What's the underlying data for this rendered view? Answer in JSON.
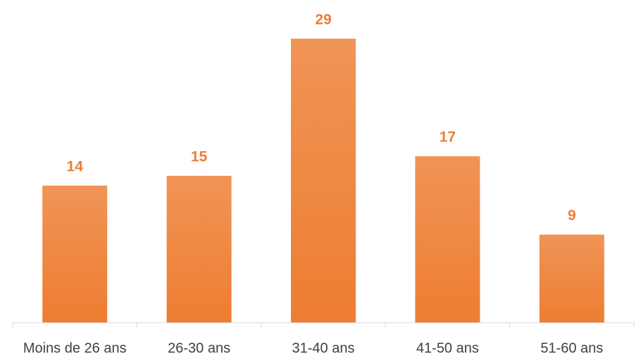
{
  "chart_data": {
    "type": "bar",
    "categories": [
      "Moins de 26 ans",
      "26-30 ans",
      "31-40 ans",
      "41-50 ans",
      "51-60 ans"
    ],
    "values": [
      14,
      15,
      29,
      17,
      9
    ],
    "color": "#ed7d31"
  }
}
